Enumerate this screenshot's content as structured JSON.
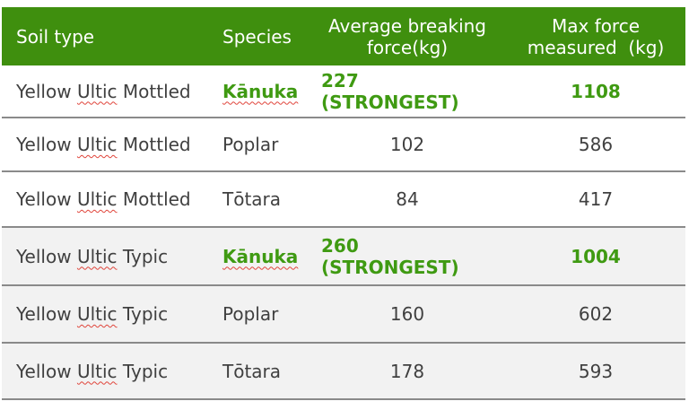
{
  "header": {
    "soil_type": "Soil type",
    "species": "Species",
    "avg_line1": "Average breaking",
    "avg_line2": "force(kg)",
    "max_line1": "Max force",
    "max_line2": "measured  (kg)"
  },
  "rows": [
    {
      "soil_a": "Yellow ",
      "soil_b": "Ultic",
      "soil_c": " Mottled",
      "species": "Kānuka",
      "avg": "227 (STRONGEST)",
      "max": "1108"
    },
    {
      "soil_a": "Yellow ",
      "soil_b": "Ultic",
      "soil_c": " Mottled",
      "species": "Poplar",
      "avg": "102",
      "max": "586"
    },
    {
      "soil_a": "Yellow ",
      "soil_b": "Ultic",
      "soil_c": " Mottled",
      "species": "Tōtara",
      "avg": "84",
      "max": "417"
    },
    {
      "soil_a": "Yellow ",
      "soil_b": "Ultic",
      "soil_c": " Typic",
      "species": "Kānuka",
      "avg": "260 (STRONGEST)",
      "max": "1004"
    },
    {
      "soil_a": "Yellow ",
      "soil_b": "Ultic",
      "soil_c": " Typic",
      "species": "Poplar",
      "avg": "160",
      "max": "602"
    },
    {
      "soil_a": "Yellow ",
      "soil_b": "Ultic",
      "soil_c": " Typic",
      "species": "Tōtara",
      "avg": "178",
      "max": "593"
    }
  ],
  "colors": {
    "header_bg": "#3f8f0e",
    "highlight": "#3f9a12",
    "alt_row": "#f2f2f2"
  }
}
